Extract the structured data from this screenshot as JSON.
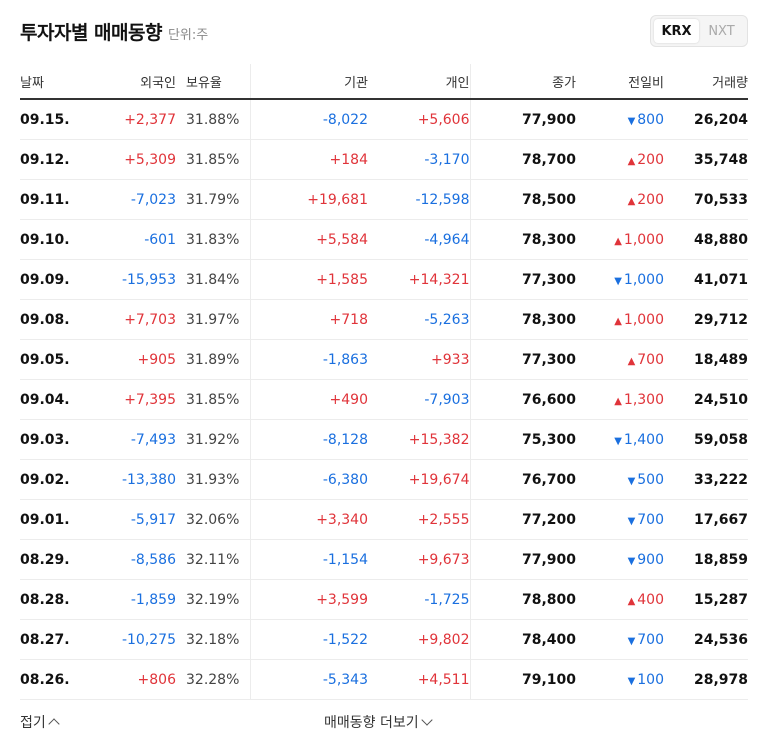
{
  "header": {
    "title": "투자자별 매매동향",
    "unit": "단위:주"
  },
  "market_toggle": {
    "options": [
      "KRX",
      "NXT"
    ],
    "selected": "KRX"
  },
  "columns": {
    "date": "날짜",
    "foreign": "외국인",
    "ratio": "보유율",
    "inst": "기관",
    "indiv": "개인",
    "close": "종가",
    "change": "전일비",
    "volume": "거래량"
  },
  "rows": [
    {
      "date": "09.15.",
      "foreign": "+2,377",
      "ratio": "31.88%",
      "inst": "-8,022",
      "indiv": "+5,606",
      "close": "77,900",
      "change": "800",
      "dir": "down",
      "volume": "26,204"
    },
    {
      "date": "09.12.",
      "foreign": "+5,309",
      "ratio": "31.85%",
      "inst": "+184",
      "indiv": "-3,170",
      "close": "78,700",
      "change": "200",
      "dir": "up",
      "volume": "35,748"
    },
    {
      "date": "09.11.",
      "foreign": "-7,023",
      "ratio": "31.79%",
      "inst": "+19,681",
      "indiv": "-12,598",
      "close": "78,500",
      "change": "200",
      "dir": "up",
      "volume": "70,533"
    },
    {
      "date": "09.10.",
      "foreign": "-601",
      "ratio": "31.83%",
      "inst": "+5,584",
      "indiv": "-4,964",
      "close": "78,300",
      "change": "1,000",
      "dir": "up",
      "volume": "48,880"
    },
    {
      "date": "09.09.",
      "foreign": "-15,953",
      "ratio": "31.84%",
      "inst": "+1,585",
      "indiv": "+14,321",
      "close": "77,300",
      "change": "1,000",
      "dir": "down",
      "volume": "41,071"
    },
    {
      "date": "09.08.",
      "foreign": "+7,703",
      "ratio": "31.97%",
      "inst": "+718",
      "indiv": "-5,263",
      "close": "78,300",
      "change": "1,000",
      "dir": "up",
      "volume": "29,712"
    },
    {
      "date": "09.05.",
      "foreign": "+905",
      "ratio": "31.89%",
      "inst": "-1,863",
      "indiv": "+933",
      "close": "77,300",
      "change": "700",
      "dir": "up",
      "volume": "18,489"
    },
    {
      "date": "09.04.",
      "foreign": "+7,395",
      "ratio": "31.85%",
      "inst": "+490",
      "indiv": "-7,903",
      "close": "76,600",
      "change": "1,300",
      "dir": "up",
      "volume": "24,510"
    },
    {
      "date": "09.03.",
      "foreign": "-7,493",
      "ratio": "31.92%",
      "inst": "-8,128",
      "indiv": "+15,382",
      "close": "75,300",
      "change": "1,400",
      "dir": "down",
      "volume": "59,058"
    },
    {
      "date": "09.02.",
      "foreign": "-13,380",
      "ratio": "31.93%",
      "inst": "-6,380",
      "indiv": "+19,674",
      "close": "76,700",
      "change": "500",
      "dir": "down",
      "volume": "33,222"
    },
    {
      "date": "09.01.",
      "foreign": "-5,917",
      "ratio": "32.06%",
      "inst": "+3,340",
      "indiv": "+2,555",
      "close": "77,200",
      "change": "700",
      "dir": "down",
      "volume": "17,667"
    },
    {
      "date": "08.29.",
      "foreign": "-8,586",
      "ratio": "32.11%",
      "inst": "-1,154",
      "indiv": "+9,673",
      "close": "77,900",
      "change": "900",
      "dir": "down",
      "volume": "18,859"
    },
    {
      "date": "08.28.",
      "foreign": "-1,859",
      "ratio": "32.19%",
      "inst": "+3,599",
      "indiv": "-1,725",
      "close": "78,800",
      "change": "400",
      "dir": "up",
      "volume": "15,287"
    },
    {
      "date": "08.27.",
      "foreign": "-10,275",
      "ratio": "32.18%",
      "inst": "-1,522",
      "indiv": "+9,802",
      "close": "78,400",
      "change": "700",
      "dir": "down",
      "volume": "24,536"
    },
    {
      "date": "08.26.",
      "foreign": "+806",
      "ratio": "32.28%",
      "inst": "-5,343",
      "indiv": "+4,511",
      "close": "79,100",
      "change": "100",
      "dir": "down",
      "volume": "28,978"
    }
  ],
  "footer": {
    "fold_label": "접기",
    "more_label": "매매동향 더보기"
  },
  "colors": {
    "up": "#e0343a",
    "down": "#1a6fdf"
  },
  "icons": {
    "up": "▲",
    "down": "▼"
  }
}
